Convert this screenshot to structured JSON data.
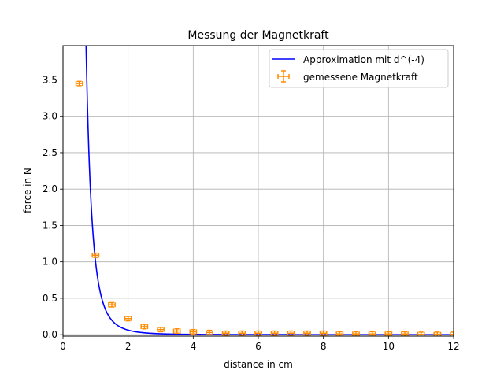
{
  "chart_data": {
    "type": "scatter",
    "title": "Messung der Magnetkraft",
    "xlabel": "distance in cm",
    "ylabel": "force in N",
    "xlim": [
      0,
      12
    ],
    "ylim": [
      -0.02,
      3.97
    ],
    "grid": true,
    "legend_position": "upper right",
    "xticks": [
      0,
      2,
      4,
      6,
      8,
      10,
      12
    ],
    "xtick_labels": [
      "0",
      "2",
      "4",
      "6",
      "8",
      "10",
      "12"
    ],
    "yticks": [
      0.0,
      0.5,
      1.0,
      1.5,
      2.0,
      2.5,
      3.0,
      3.5
    ],
    "ytick_labels": [
      "0.0",
      "0.5",
      "1.0",
      "1.5",
      "2.0",
      "2.5",
      "3.0",
      "3.5"
    ],
    "series": [
      {
        "name": "Approximation mit d^(-4)",
        "kind": "line",
        "color": "#0000ff",
        "formula": "F = 1.0 * d^-4",
        "coefficient": 1.0
      },
      {
        "name": "gemessene Magnetkraft",
        "kind": "errorbar",
        "color": "#ff8c00",
        "x": [
          0.5,
          1.0,
          1.5,
          2.0,
          2.5,
          3.0,
          3.5,
          4.0,
          4.5,
          5.0,
          5.5,
          6.0,
          6.5,
          7.0,
          7.5,
          8.0,
          8.5,
          9.0,
          9.5,
          10.0,
          10.5,
          11.0,
          11.5,
          12.0
        ],
        "y": [
          3.45,
          1.09,
          0.41,
          0.22,
          0.11,
          0.07,
          0.05,
          0.04,
          0.03,
          0.02,
          0.02,
          0.02,
          0.02,
          0.02,
          0.02,
          0.02,
          0.01,
          0.01,
          0.01,
          0.01,
          0.01,
          0.005,
          0.005,
          0.005
        ],
        "xerr": 0.1,
        "yerr": 0.03
      }
    ]
  }
}
